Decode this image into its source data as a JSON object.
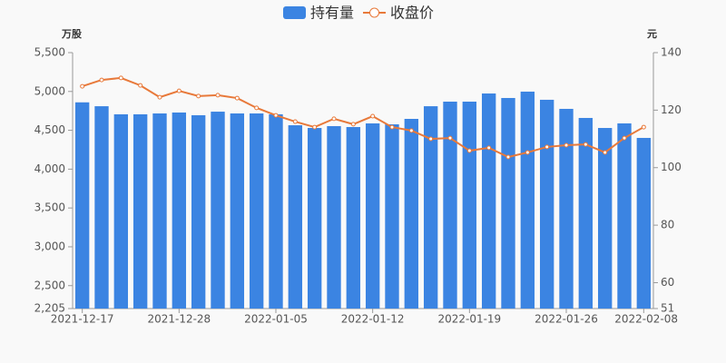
{
  "chart_data": {
    "type": "bar",
    "y_label": "万股",
    "y2_label": "元",
    "categories": [
      "2021-12-17",
      null,
      null,
      null,
      null,
      "2021-12-28",
      null,
      null,
      null,
      null,
      "2022-01-05",
      null,
      null,
      null,
      null,
      "2022-01-12",
      null,
      null,
      null,
      null,
      "2022-01-19",
      null,
      null,
      null,
      null,
      "2022-01-26",
      null,
      null,
      null,
      "2022-02-08"
    ],
    "series": [
      {
        "name": "持有量",
        "type": "bar",
        "color": "#3b84e2",
        "values": [
          4860,
          4810,
          4706,
          4706,
          4717,
          4729,
          4694,
          4740,
          4717,
          4717,
          4706,
          4565,
          4530,
          4554,
          4542,
          4589,
          4577,
          4647,
          4810,
          4869,
          4869,
          4974,
          4916,
          4998,
          4893,
          4776,
          4659,
          4530,
          4589,
          4402
        ]
      },
      {
        "name": "收盘价",
        "type": "line",
        "axis": "y2",
        "color": "#e8793a",
        "values": [
          128.3,
          130.5,
          131.2,
          128.6,
          124.5,
          126.7,
          124.9,
          125.2,
          124.2,
          120.8,
          118.2,
          116.0,
          114.1,
          117.0,
          115.1,
          117.9,
          114.1,
          112.9,
          110.0,
          110.3,
          105.9,
          106.9,
          103.7,
          105.3,
          107.2,
          107.8,
          108.1,
          105.3,
          110.3,
          114.1
        ]
      }
    ],
    "ylim": [
      2205,
      5500
    ],
    "yticks": [
      {
        "value": 2205,
        "label": "2,205"
      },
      {
        "value": 2500,
        "label": "2,500"
      },
      {
        "value": 3000,
        "label": "3,000"
      },
      {
        "value": 3500,
        "label": "3,500"
      },
      {
        "value": 4000,
        "label": "4,000"
      },
      {
        "value": 4500,
        "label": "4,500"
      },
      {
        "value": 5000,
        "label": "5,000"
      },
      {
        "value": 5500,
        "label": "5,500"
      }
    ],
    "y2lim": [
      51,
      140
    ],
    "y2ticks": [
      51,
      60,
      80,
      100,
      120,
      140
    ],
    "legend": "top"
  }
}
